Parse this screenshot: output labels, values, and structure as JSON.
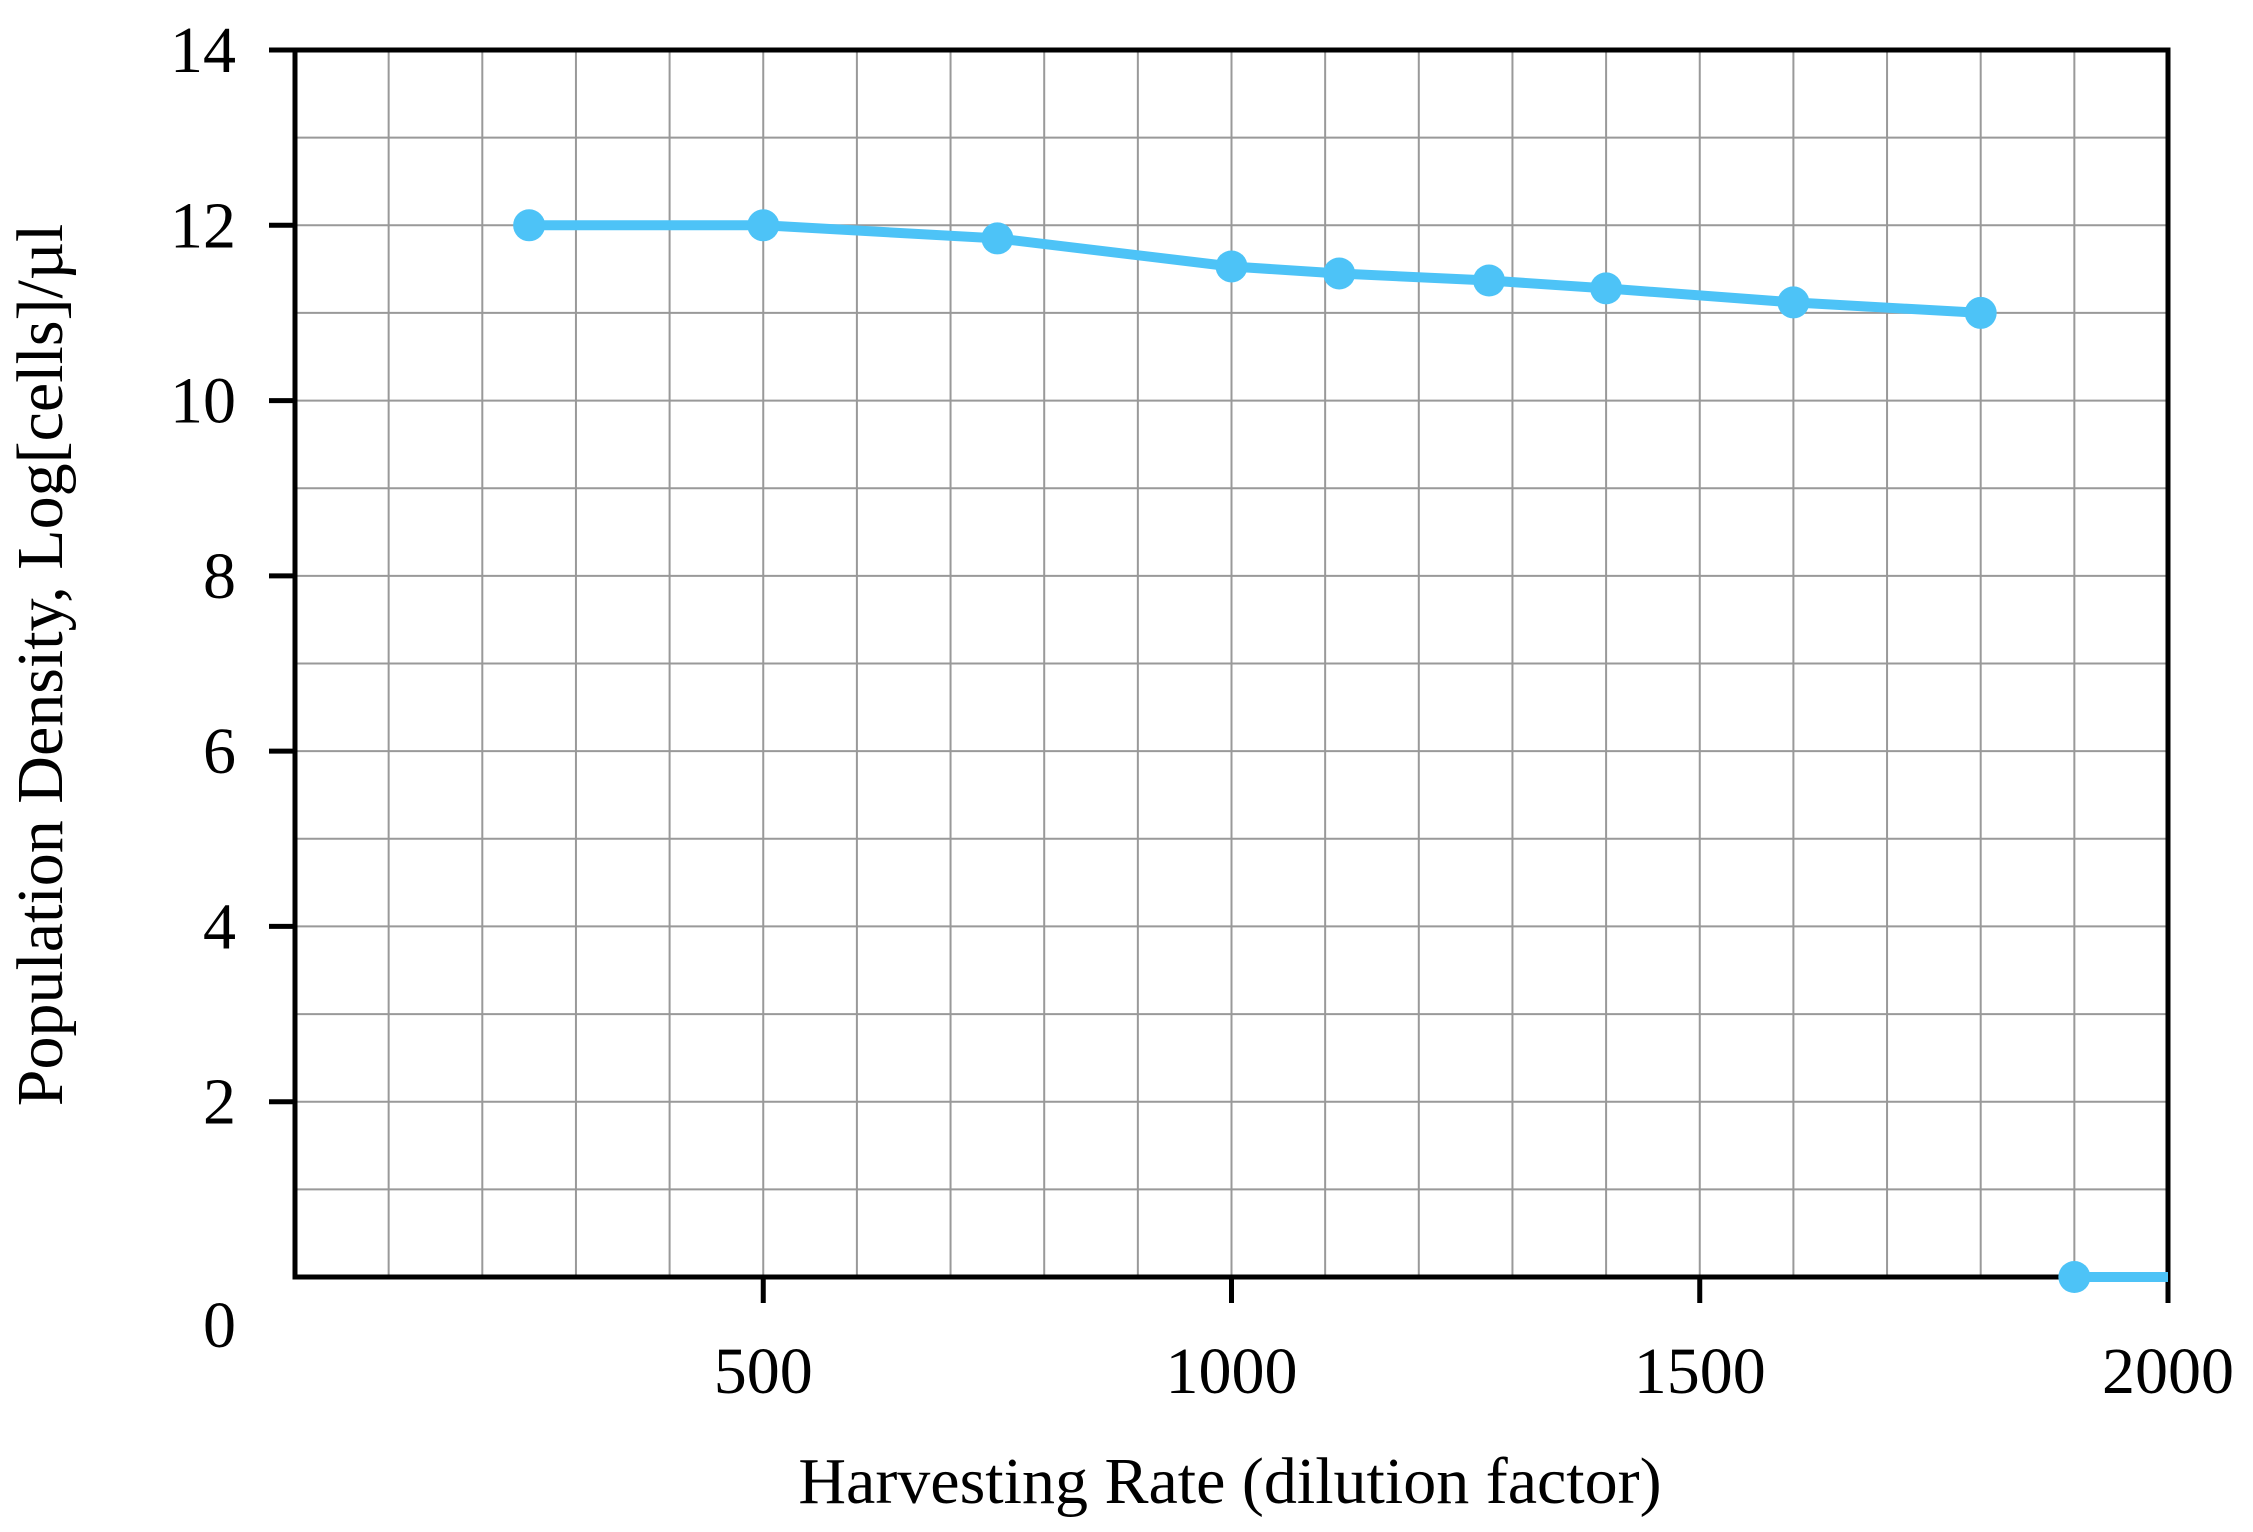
{
  "chart_data": {
    "type": "line",
    "xlabel": "Harvesting Rate (dilution factor)",
    "ylabel": "Population Density, Log[cells]/µl",
    "xlim": [
      0,
      2000
    ],
    "ylim": [
      0,
      14
    ],
    "x_ticks": [
      500,
      1000,
      1500,
      2000
    ],
    "x_tick_labels": [
      "500",
      "1000",
      "1500",
      "2000"
    ],
    "y_ticks": [
      0,
      2,
      4,
      6,
      8,
      10,
      12,
      14
    ],
    "y_tick_labels": [
      "0",
      "2",
      "4",
      "6",
      "8",
      "10",
      "12",
      "14"
    ],
    "x_minor_step": 100,
    "y_minor_step": 1,
    "grid": true,
    "line_color": "#4dc3f7",
    "grid_color": "#999999",
    "axis_color": "#000000",
    "series": [
      {
        "x": [
          250,
          500,
          750,
          1000,
          1115,
          1275,
          1400,
          1600,
          1800
        ],
        "y": [
          12.0,
          12.0,
          11.85,
          11.53,
          11.45,
          11.37,
          11.28,
          11.12,
          11.0
        ]
      },
      {
        "x": [
          1900,
          2000
        ],
        "y": [
          0,
          0
        ],
        "marker_indices": [
          0
        ]
      }
    ]
  }
}
